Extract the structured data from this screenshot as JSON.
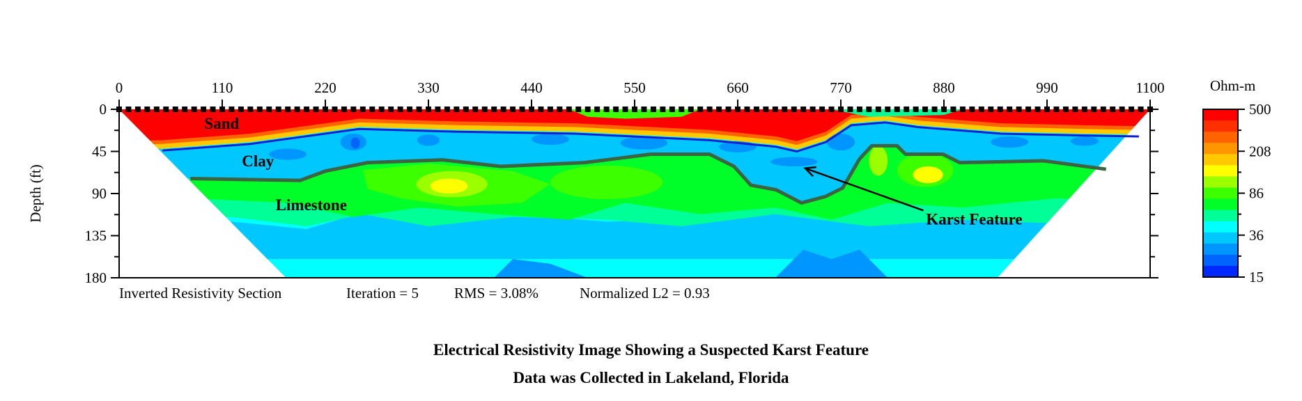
{
  "chart_data": {
    "type": "heatmap",
    "subtype": "inverted resistivity cross-section",
    "title": "Electrical Resistivity Image Showing a Suspected Karst Feature",
    "subtitle": "Data was Collected in Lakeland, Florida",
    "xlabel": "",
    "ylabel": "Depth (ft)",
    "xlim": [
      0,
      1100
    ],
    "ylim": [
      0,
      180
    ],
    "y_inverted": true,
    "x_ticks": [
      "0",
      "110",
      "220",
      "330",
      "440",
      "550",
      "660",
      "770",
      "880",
      "990",
      "1100"
    ],
    "y_ticks": [
      "0",
      "45",
      "90",
      "135",
      "180"
    ],
    "section_outline": [
      [
        0,
        0
      ],
      [
        1100,
        0
      ],
      [
        937,
        180
      ],
      [
        178,
        180
      ]
    ],
    "electrode_spacing": 10,
    "colorbar": {
      "label": "Ohm-m",
      "tick_labels": [
        "500",
        "208",
        "86",
        "36",
        "15"
      ],
      "range": [
        15,
        500
      ],
      "scale": "log",
      "colors": [
        "#ff0000",
        "#ff3000",
        "#ff6400",
        "#ff9600",
        "#ffc800",
        "#ffff00",
        "#9bff00",
        "#3cff00",
        "#00ff28",
        "#00ff96",
        "#00ffff",
        "#00c8ff",
        "#0096ff",
        "#0064ff",
        "#0028ff"
      ]
    },
    "boundaries": [
      {
        "name": "sand-clay",
        "color": "#1020d0",
        "points": [
          [
            46,
            44
          ],
          [
            140,
            37
          ],
          [
            256,
            21
          ],
          [
            363,
            24
          ],
          [
            487,
            26
          ],
          [
            630,
            33
          ],
          [
            701,
            40
          ],
          [
            723,
            45
          ],
          [
            754,
            35
          ],
          [
            781,
            17
          ],
          [
            817,
            14
          ],
          [
            852,
            19
          ],
          [
            941,
            26
          ],
          [
            1031,
            28
          ],
          [
            1088,
            29
          ]
        ]
      },
      {
        "name": "clay-limestone",
        "color": "#3c6440",
        "points": [
          [
            76,
            74
          ],
          [
            193,
            76
          ],
          [
            220,
            66
          ],
          [
            265,
            57
          ],
          [
            345,
            54
          ],
          [
            407,
            61
          ],
          [
            496,
            57
          ],
          [
            567,
            48
          ],
          [
            630,
            48
          ],
          [
            656,
            61
          ],
          [
            674,
            81
          ],
          [
            701,
            86
          ],
          [
            728,
            100
          ],
          [
            754,
            93
          ],
          [
            772,
            84
          ],
          [
            790,
            53
          ],
          [
            803,
            39
          ],
          [
            830,
            39
          ],
          [
            839,
            48
          ],
          [
            879,
            48
          ],
          [
            897,
            57
          ],
          [
            986,
            55
          ],
          [
            1053,
            64
          ]
        ]
      }
    ],
    "annotations": [
      {
        "text": "Sand",
        "x": 91,
        "y": 15
      },
      {
        "text": "Clay",
        "x": 131,
        "y": 55
      },
      {
        "text": "Limestone",
        "x": 167,
        "y": 102
      },
      {
        "text": "Karst Feature",
        "x": 861,
        "y": 117,
        "arrow_to": [
          732,
          63
        ]
      }
    ],
    "footer": {
      "section": "Inverted Resistivity Section",
      "iteration": "Iteration = 5",
      "rms": "RMS = 3.08%",
      "l2": "Normalized L2 = 0.93"
    }
  }
}
